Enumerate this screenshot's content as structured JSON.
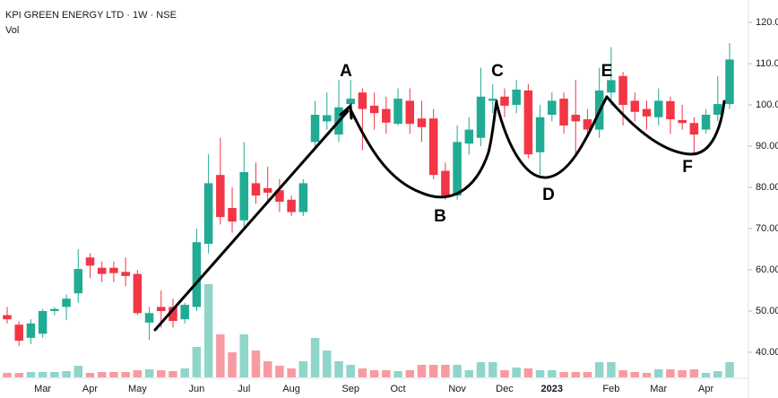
{
  "chart_data": {
    "type": "candlestick",
    "title": "KPI GREEN ENERGY LTD · 1W · NSE",
    "volume_label": "Vol",
    "up_color": "#22ab94",
    "down_color": "#f23645",
    "ylim": [
      34.13,
      125.43
    ],
    "yticks": [
      {
        "value": 120,
        "label": "120.00"
      },
      {
        "value": 110,
        "label": "110.00"
      },
      {
        "value": 100,
        "label": "100.00"
      },
      {
        "value": 90,
        "label": "90.00"
      },
      {
        "value": 80,
        "label": "80.00"
      },
      {
        "value": 70,
        "label": "70.00"
      },
      {
        "value": 60,
        "label": "60.00"
      },
      {
        "value": 50,
        "label": "50.00"
      },
      {
        "value": 40,
        "label": "40.00"
      }
    ],
    "volume_ylim": [
      0,
      110
    ],
    "grid": false,
    "annotations": [
      "A",
      "B",
      "C",
      "D",
      "E",
      "F"
    ],
    "categories": [
      null,
      null,
      null,
      "Mar",
      null,
      null,
      null,
      "Apr",
      null,
      null,
      null,
      "May",
      null,
      null,
      null,
      null,
      "Jun",
      null,
      null,
      null,
      "Jul",
      null,
      null,
      null,
      "Aug",
      null,
      null,
      null,
      null,
      "Sep",
      null,
      null,
      null,
      "Oct",
      null,
      null,
      null,
      null,
      "Nov",
      null,
      null,
      null,
      "Dec",
      null,
      null,
      null,
      "2023",
      null,
      null,
      null,
      null,
      "Feb",
      null,
      null,
      null,
      "Mar",
      null,
      null,
      null,
      "Apr",
      null,
      null
    ],
    "open": [
      49,
      46.7,
      43.5,
      44.5,
      50,
      51,
      54.3,
      63,
      60.5,
      60.5,
      59.5,
      59,
      47.2,
      51,
      51,
      48,
      51,
      66.3,
      83,
      75,
      72,
      81,
      79.8,
      79.3,
      77,
      74,
      91,
      96,
      92.8,
      100.2,
      103,
      99.8,
      99,
      95.4,
      101,
      96.7,
      96.7,
      84,
      78,
      90.6,
      92,
      101,
      102,
      100,
      103.5,
      88.5,
      97.6,
      101.5,
      97.6,
      96.5,
      94,
      103,
      107,
      101,
      99,
      97,
      100.9,
      96.3,
      95.6,
      94,
      97.6,
      100.2
    ],
    "high": [
      51,
      47.5,
      48,
      50.5,
      51,
      54,
      65,
      64,
      62,
      62,
      63,
      60,
      51,
      55,
      53,
      52,
      70,
      88,
      92,
      80,
      91,
      86,
      85,
      82,
      78,
      82,
      101,
      103,
      106,
      106,
      104,
      103,
      102,
      104,
      104,
      101,
      99,
      86,
      95,
      97,
      109,
      105,
      104,
      106,
      105,
      100,
      103,
      103,
      106,
      99,
      109,
      114,
      108,
      103,
      101,
      104,
      102,
      100,
      97,
      99,
      107,
      115
    ],
    "low": [
      47,
      41.5,
      42,
      43.5,
      49,
      47.8,
      52,
      58,
      57,
      57,
      56,
      49,
      43,
      46,
      46,
      47,
      50,
      64,
      71,
      69,
      70,
      76,
      76,
      74,
      73,
      73,
      89,
      94,
      91,
      97,
      89,
      94,
      93,
      95,
      93,
      91,
      82,
      77,
      77,
      88,
      90,
      98,
      97,
      98,
      87,
      83,
      96,
      93,
      88,
      92,
      92,
      100,
      95,
      96,
      94,
      95,
      93,
      94,
      88,
      93,
      96,
      99
    ],
    "close": [
      48,
      42.8,
      47,
      50,
      50.5,
      53,
      60.2,
      61,
      59,
      59.2,
      58.5,
      49.5,
      49.5,
      50,
      47.6,
      51.5,
      66.7,
      81,
      72.8,
      71.7,
      83.7,
      78,
      78.7,
      76.5,
      74,
      81,
      97.6,
      97.5,
      99.4,
      101.5,
      99,
      98,
      95.7,
      101.5,
      95.4,
      94.6,
      83,
      78,
      91,
      94,
      102,
      101.5,
      99.8,
      103.7,
      88,
      97,
      101,
      95,
      96,
      94,
      103.5,
      106,
      100,
      98.3,
      97.2,
      101,
      96.5,
      95.6,
      92.8,
      97.6,
      100.2,
      111
    ],
    "volume": [
      5,
      5,
      6,
      6,
      6,
      7,
      13,
      5,
      6,
      6,
      6,
      8,
      9,
      8,
      7,
      10,
      34,
      104,
      48,
      28,
      48,
      30,
      18,
      13,
      10,
      18,
      44,
      30,
      18,
      14,
      10,
      8,
      8,
      7,
      8,
      14,
      14,
      14,
      14,
      8,
      17,
      17,
      8,
      11,
      10,
      8,
      8,
      6,
      6,
      6,
      17,
      17,
      8,
      6,
      5,
      9,
      9,
      8,
      9,
      5,
      7,
      17
    ]
  }
}
